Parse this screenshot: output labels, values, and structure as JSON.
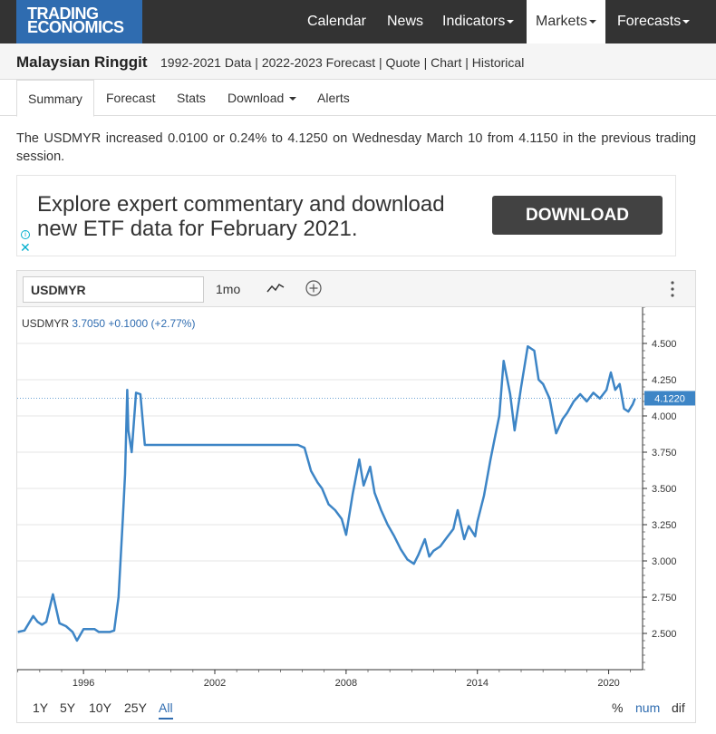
{
  "brand": {
    "line1": "TRADING",
    "line2": "ECONOMICS",
    "color": "#2f6cb0"
  },
  "nav": {
    "items": [
      {
        "label": "Calendar",
        "dropdown": false
      },
      {
        "label": "News",
        "dropdown": false
      },
      {
        "label": "Indicators",
        "dropdown": true
      },
      {
        "label": "Markets",
        "dropdown": true,
        "active": true
      },
      {
        "label": "Forecasts",
        "dropdown": true
      }
    ]
  },
  "page": {
    "title": "Malaysian Ringgit",
    "links": "1992-2021 Data | 2022-2023 Forecast | Quote | Chart | Historical"
  },
  "tabs": [
    {
      "label": "Summary",
      "active": true
    },
    {
      "label": "Forecast"
    },
    {
      "label": "Stats"
    },
    {
      "label": "Download",
      "dropdown": true
    },
    {
      "label": "Alerts"
    }
  ],
  "description": "The USDMYR increased 0.0100 or 0.24% to 4.1250 on Wednesday March 10 from 4.1150 in the previous trading session.",
  "ad": {
    "text_line1": "Explore expert commentary and download",
    "text_line2": "new ETF data for February 2021.",
    "button": "DOWNLOAD",
    "info": "i",
    "close": "✕"
  },
  "toolbar": {
    "symbol": "USDMYR",
    "range": "1mo",
    "icons": [
      "line-chart-icon",
      "add-circle-icon",
      "more-vertical-icon"
    ]
  },
  "legend": {
    "symbol": "USDMYR",
    "value": "3.7050",
    "change": "+0.1000 (+2.77%)"
  },
  "bottom": {
    "ranges": [
      "1Y",
      "5Y",
      "10Y",
      "25Y",
      "All"
    ],
    "active_range": "All",
    "modes": [
      "%",
      "num",
      "dif"
    ],
    "active_mode": "num"
  },
  "chart_data": {
    "type": "line",
    "series": [
      {
        "name": "USDMYR",
        "color": "#3d85c6",
        "x": [
          1993.0,
          1993.3,
          1993.7,
          1993.9,
          1994.1,
          1994.3,
          1994.6,
          1994.9,
          1995.2,
          1995.5,
          1995.7,
          1996.0,
          1996.2,
          1996.5,
          1996.7,
          1996.9,
          1997.2,
          1997.4,
          1997.6,
          1997.8,
          1997.9,
          1998.0,
          1998.05,
          1998.2,
          1998.4,
          1998.6,
          1998.8,
          2000.0,
          2003.0,
          2005.5,
          2005.8,
          2006.1,
          2006.4,
          2006.7,
          2006.9,
          2007.2,
          2007.5,
          2007.8,
          2008.0,
          2008.3,
          2008.6,
          2008.8,
          2009.1,
          2009.3,
          2009.6,
          2009.9,
          2010.2,
          2010.5,
          2010.8,
          2011.1,
          2011.3,
          2011.6,
          2011.8,
          2012.0,
          2012.3,
          2012.6,
          2012.9,
          2013.1,
          2013.4,
          2013.6,
          2013.9,
          2014.0,
          2014.3,
          2014.6,
          2014.8,
          2015.0,
          2015.2,
          2015.5,
          2015.7,
          2015.8,
          2016.0,
          2016.3,
          2016.6,
          2016.8,
          2017.0,
          2017.3,
          2017.6,
          2017.9,
          2018.1,
          2018.4,
          2018.7,
          2019.0,
          2019.3,
          2019.6,
          2019.9,
          2020.1,
          2020.3,
          2020.5,
          2020.7,
          2020.9,
          2021.1,
          2021.2
        ],
        "values": [
          2.51,
          2.52,
          2.62,
          2.58,
          2.56,
          2.58,
          2.77,
          2.57,
          2.55,
          2.51,
          2.45,
          2.53,
          2.53,
          2.53,
          2.51,
          2.51,
          2.51,
          2.52,
          2.75,
          3.3,
          3.6,
          4.18,
          3.9,
          3.75,
          4.16,
          4.15,
          3.8,
          3.8,
          3.8,
          3.8,
          3.8,
          3.78,
          3.62,
          3.54,
          3.5,
          3.39,
          3.35,
          3.29,
          3.18,
          3.46,
          3.7,
          3.52,
          3.65,
          3.47,
          3.35,
          3.25,
          3.17,
          3.08,
          3.01,
          2.98,
          3.04,
          3.15,
          3.03,
          3.07,
          3.1,
          3.16,
          3.22,
          3.35,
          3.15,
          3.24,
          3.17,
          3.27,
          3.45,
          3.7,
          3.85,
          4.0,
          4.38,
          4.15,
          3.9,
          4.0,
          4.2,
          4.48,
          4.45,
          4.25,
          4.22,
          4.12,
          3.88,
          3.98,
          4.02,
          4.1,
          4.15,
          4.1,
          4.16,
          4.12,
          4.18,
          4.3,
          4.18,
          4.22,
          4.05,
          4.03,
          4.08,
          4.12
        ]
      }
    ],
    "xticks": [
      "1996",
      "2002",
      "2008",
      "2014",
      "2020"
    ],
    "xrange": [
      1992.97,
      2021.55
    ],
    "yticks": [
      "2.500",
      "2.750",
      "3.000",
      "3.250",
      "3.500",
      "3.750",
      "4.000",
      "4.250",
      "4.500"
    ],
    "ylim": [
      2.25,
      4.75
    ],
    "last_value_label": "4.1220",
    "last_value": 4.122,
    "grid": "horizontal",
    "axis_position": "right"
  }
}
